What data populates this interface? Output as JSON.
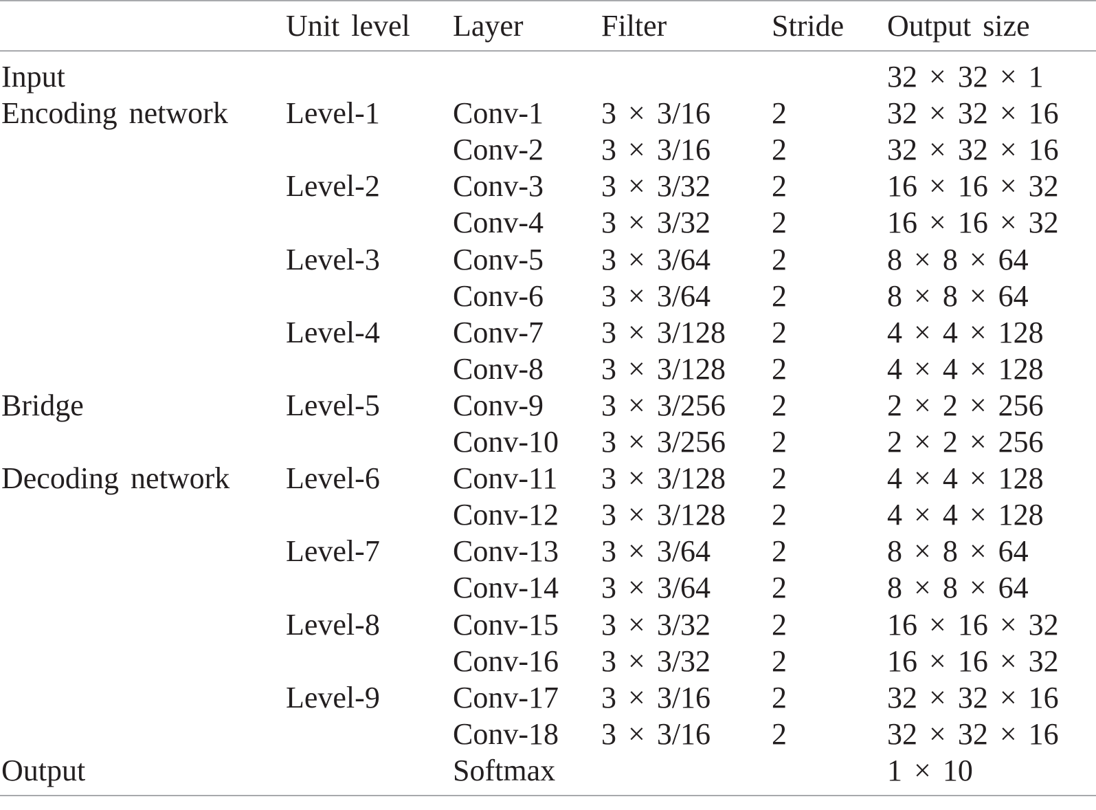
{
  "table": {
    "headers": [
      "",
      "Unit level",
      "Layer",
      "Filter",
      "Stride",
      "Output size"
    ],
    "rows": [
      [
        "Input",
        "",
        "",
        "",
        "",
        "32 × 32 × 1"
      ],
      [
        "Encoding network",
        "Level-1",
        "Conv-1",
        "3 × 3/16",
        "2",
        "32 × 32 × 16"
      ],
      [
        "",
        "",
        "Conv-2",
        "3 × 3/16",
        "2",
        "32 × 32 × 16"
      ],
      [
        "",
        "Level-2",
        "Conv-3",
        "3 × 3/32",
        "2",
        "16 × 16 × 32"
      ],
      [
        "",
        "",
        "Conv-4",
        "3 × 3/32",
        "2",
        "16 × 16 × 32"
      ],
      [
        "",
        "Level-3",
        "Conv-5",
        "3 × 3/64",
        "2",
        "8 × 8 × 64"
      ],
      [
        "",
        "",
        "Conv-6",
        "3 × 3/64",
        "2",
        "8 × 8 × 64"
      ],
      [
        "",
        "Level-4",
        "Conv-7",
        "3 × 3/128",
        "2",
        "4 × 4 × 128"
      ],
      [
        "",
        "",
        "Conv-8",
        "3 × 3/128",
        "2",
        "4 × 4 × 128"
      ],
      [
        "Bridge",
        "Level-5",
        "Conv-9",
        "3 × 3/256",
        "2",
        "2 × 2 × 256"
      ],
      [
        "",
        "",
        "Conv-10",
        "3 × 3/256",
        "2",
        "2 × 2 × 256"
      ],
      [
        "Decoding network",
        "Level-6",
        "Conv-11",
        "3 × 3/128",
        "2",
        "4 × 4 × 128"
      ],
      [
        "",
        "",
        "Conv-12",
        "3 × 3/128",
        "2",
        "4 × 4 × 128"
      ],
      [
        "",
        "Level-7",
        "Conv-13",
        "3 × 3/64",
        "2",
        "8 × 8 × 64"
      ],
      [
        "",
        "",
        "Conv-14",
        "3 × 3/64",
        "2",
        "8 × 8 × 64"
      ],
      [
        "",
        "Level-8",
        "Conv-15",
        "3 × 3/32",
        "2",
        "16 × 16 × 32"
      ],
      [
        "",
        "",
        "Conv-16",
        "3 × 3/32",
        "2",
        "16 × 16 × 32"
      ],
      [
        "",
        "Level-9",
        "Conv-17",
        "3 × 3/16",
        "2",
        "32 × 32 × 16"
      ],
      [
        "",
        "",
        "Conv-18",
        "3 × 3/16",
        "2",
        "32 × 32 × 16"
      ],
      [
        "Output",
        "",
        "Softmax",
        "",
        "",
        "1 × 10"
      ]
    ]
  }
}
